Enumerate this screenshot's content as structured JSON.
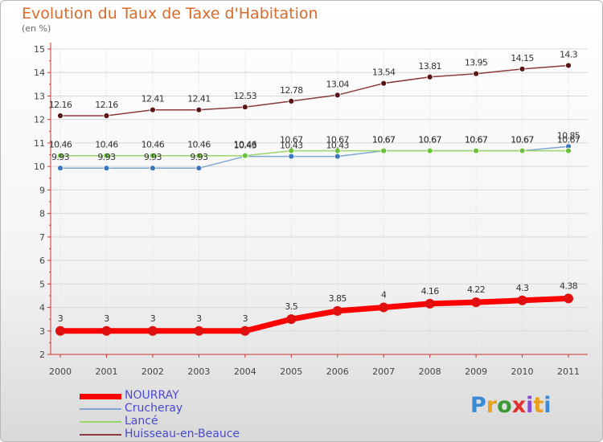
{
  "title": "Evolution du Taux de Taxe d'Habitation",
  "unit": "(en %)",
  "colors": {
    "title": "#d86a2a",
    "axis": "#cc3333",
    "grid": "#d7d7d7",
    "tick_label": "#444444",
    "data_label": "#333333",
    "legend_text": "#4a4ad0"
  },
  "logo": {
    "text": "Proxiti"
  },
  "chart_data": {
    "type": "line",
    "title": "Evolution du Taux de Taxe d'Habitation",
    "ylabel": "(en %)",
    "xlabel": "",
    "x": [
      "2000",
      "2001",
      "2002",
      "2003",
      "2004",
      "2005",
      "2006",
      "2007",
      "2008",
      "2009",
      "2010",
      "2011"
    ],
    "ylim": [
      2,
      15
    ],
    "yticks": [
      2,
      3,
      4,
      5,
      6,
      7,
      8,
      9,
      10,
      11,
      12,
      13,
      14,
      15
    ],
    "grid": true,
    "legend_position": "bottom-left",
    "series": [
      {
        "name": "NOURRAY",
        "color": "#ff0000",
        "point_color": "#e01010",
        "width": 7,
        "point_radius": 6,
        "values": [
          3,
          3,
          3,
          3,
          3,
          3.5,
          3.85,
          4,
          4.16,
          4.22,
          4.3,
          4.38
        ],
        "labels": [
          "3",
          "3",
          "3",
          "3",
          "3",
          "3.5",
          "3.85",
          "4",
          "4.16",
          "4.22",
          "4.3",
          "4.38"
        ]
      },
      {
        "name": "Crucheray",
        "color": "#7fa7d0",
        "point_color": "#3c78c0",
        "width": 1.5,
        "point_radius": 3.5,
        "values": [
          9.93,
          9.93,
          9.93,
          9.93,
          10.43,
          10.43,
          10.43,
          10.67,
          10.67,
          10.67,
          10.67,
          10.85
        ],
        "labels": [
          "9.93",
          "9.93",
          "9.93",
          "9.93",
          "10.43",
          "10.43",
          "10.43",
          "10.67",
          "10.67",
          "10.67",
          "10.67",
          "10.85"
        ]
      },
      {
        "name": "Lancé",
        "color": "#9ad66a",
        "point_color": "#6cc23a",
        "width": 1.5,
        "point_radius": 3.5,
        "values": [
          10.46,
          10.46,
          10.46,
          10.46,
          10.46,
          10.67,
          10.67,
          10.67,
          10.67,
          10.67,
          10.67,
          10.67
        ],
        "labels": [
          "10.46",
          "10.46",
          "10.46",
          "10.46",
          "10.46",
          "10.67",
          "10.67",
          "10.67",
          "10.67",
          "10.67",
          "10.67",
          "10.67"
        ]
      },
      {
        "name": "Huisseau-en-Beauce",
        "color": "#8a3a3a",
        "point_color": "#5a1414",
        "width": 1.5,
        "point_radius": 3.5,
        "values": [
          12.16,
          12.16,
          12.41,
          12.41,
          12.53,
          12.78,
          13.04,
          13.54,
          13.81,
          13.95,
          14.15,
          14.3
        ],
        "labels": [
          "12.16",
          "12.16",
          "12.41",
          "12.41",
          "12.53",
          "12.78",
          "13.04",
          "13.54",
          "13.81",
          "13.95",
          "14.15",
          "14.3"
        ]
      }
    ]
  }
}
